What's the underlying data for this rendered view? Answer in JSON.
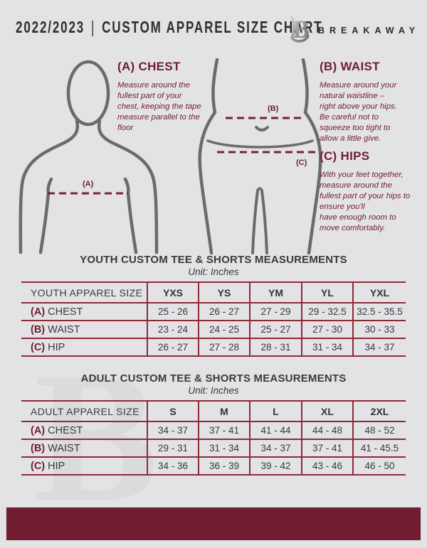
{
  "header": {
    "season": "2022/2023",
    "divider": "|",
    "title": "CUSTOM APPAREL SIZE CHART",
    "brand": "BREAKAWAY",
    "logo_monogram": "B"
  },
  "guide": {
    "chest": {
      "heading": "(A) CHEST",
      "marker": "(A)",
      "body": "Measure around the fullest part of your chest, keeping the tape measure parallel to the floor"
    },
    "waist": {
      "heading": "(B) WAIST",
      "marker": "(B)",
      "body": "Measure around your natural waistline – right above your hips. Be careful not to squeeze too tight to allow a little give."
    },
    "hips": {
      "heading": "(C) HIPS",
      "marker": "(C)",
      "body": "With your feet together, measure around the fullest part of your hips to ensure you'll\nhave enough room to move comfortably."
    }
  },
  "tables": {
    "youth": {
      "title": "YOUTH CUSTOM TEE & SHORTS MEASUREMENTS",
      "unit": "Unit: Inches",
      "header": [
        "YOUTH APPAREL SIZE",
        "YXS",
        "YS",
        "YM",
        "YL",
        "YXL"
      ],
      "rows": [
        {
          "prefix": "(A)",
          "label": "CHEST",
          "values": [
            "25 - 26",
            "26 - 27",
            "27 - 29",
            "29 - 32.5",
            "32.5 - 35.5"
          ]
        },
        {
          "prefix": "(B)",
          "label": "WAIST",
          "values": [
            "23 - 24",
            "24 - 25",
            "25 - 27",
            "27 - 30",
            "30 - 33"
          ]
        },
        {
          "prefix": "(C)",
          "label": "HIP",
          "values": [
            "26 - 27",
            "27 - 28",
            "28 - 31",
            "31 - 34",
            "34 - 37"
          ]
        }
      ]
    },
    "adult": {
      "title": "ADULT CUSTOM TEE & SHORTS MEASUREMENTS",
      "unit": "Unit: Inches",
      "header": [
        "ADULT APPAREL SIZE",
        "S",
        "M",
        "L",
        "XL",
        "2XL"
      ],
      "rows": [
        {
          "prefix": "(A)",
          "label": "CHEST",
          "values": [
            "34 - 37",
            "37 - 41",
            "41 - 44",
            "44 - 48",
            "48 - 52"
          ]
        },
        {
          "prefix": "(B)",
          "label": "WAIST",
          "values": [
            "29 - 31",
            "31 - 34",
            "34 - 37",
            "37 - 41",
            "41 - 45.5"
          ]
        },
        {
          "prefix": "(C)",
          "label": "HIP",
          "values": [
            "34 - 36",
            "36 - 39",
            "39 - 42",
            "43 - 46",
            "46 - 50"
          ]
        }
      ]
    }
  },
  "watermark": "B",
  "colors": {
    "background": "#e3e3e5",
    "maroon": "#701d32",
    "table_border": "#8e2a38",
    "dark_text": "#2e2e30",
    "figure_gray": "#6b6b6d",
    "watermark_gray": "#dbdbdd"
  }
}
